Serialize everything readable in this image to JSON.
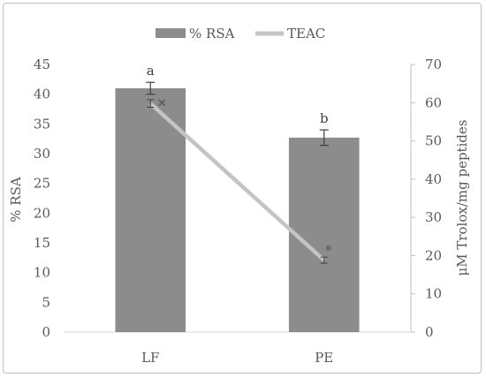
{
  "chart_data": {
    "type": "bar",
    "categories": [
      "LF",
      "PE"
    ],
    "series": [
      {
        "name": "% RSA",
        "type": "bar",
        "axis": "left",
        "values": [
          41.0,
          32.7
        ],
        "errors": [
          1.0,
          1.3
        ],
        "significance_labels": [
          "a",
          "b"
        ],
        "color": "#8c8c8c"
      },
      {
        "name": "TEAC",
        "type": "line",
        "axis": "right",
        "values": [
          59.8,
          18.8
        ],
        "errors": [
          1.0,
          0.8
        ],
        "color": "#c4c4c4"
      }
    ],
    "extra_markers": [
      {
        "category": "LF",
        "axis": "right",
        "value": 60.0,
        "shape": "x"
      },
      {
        "category": "PE",
        "axis": "right",
        "value": 22.0,
        "shape": "dot"
      }
    ],
    "title": "",
    "xlabel": "",
    "ylabel": "% RSA",
    "y2label": "μM Trolox/mg peptides",
    "ylim": [
      0,
      45
    ],
    "y_ticks": [
      0,
      5,
      10,
      15,
      20,
      25,
      30,
      35,
      40,
      45
    ],
    "y2lim": [
      0,
      70
    ],
    "y2_ticks": [
      0,
      10,
      20,
      30,
      40,
      50,
      60,
      70
    ],
    "grid": false,
    "legend_position": "top"
  }
}
